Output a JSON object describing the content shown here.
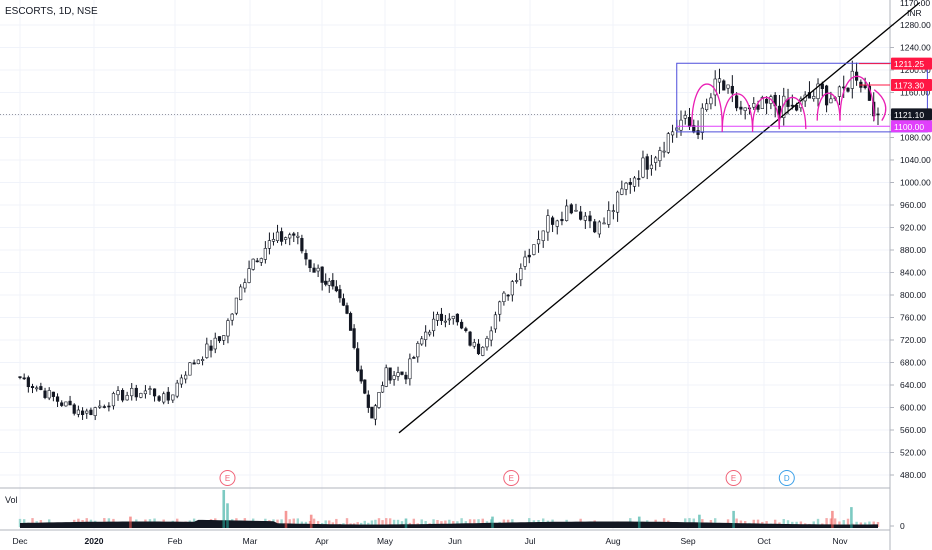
{
  "header": {
    "symbol_line": "ESCORTS, 1D, NSE",
    "volume_label": "Vol"
  },
  "chart_data": {
    "type": "candlestick",
    "symbol": "ESCORTS",
    "interval": "1D",
    "exchange": "NSE",
    "currency": "INR",
    "y_ticks": [
      480,
      520,
      560,
      600,
      640,
      680,
      720,
      760,
      800,
      840,
      880,
      920,
      960,
      1000,
      1040,
      1080,
      1120,
      1160,
      1200,
      1240,
      1280
    ],
    "y_top_label": "1170.00",
    "ylim": [
      465,
      1320
    ],
    "x_tick_labels": [
      "Dec",
      "2020",
      "Feb",
      "Mar",
      "Apr",
      "May",
      "Jun",
      "Jul",
      "Aug",
      "Sep",
      "Oct",
      "Nov"
    ],
    "price_levels": [
      {
        "value": 1211.25,
        "label": "1211.25",
        "color": "#ff1744"
      },
      {
        "value": 1173.3,
        "label": "1173.30",
        "color": "#ff1744"
      },
      {
        "value": 1121.1,
        "label": "1121.10",
        "color": "#131722"
      },
      {
        "value": 1100.0,
        "label": "1100.00",
        "color": "#e040fb"
      }
    ],
    "events": [
      {
        "label": "E",
        "month_pos": 2.7,
        "color": "#f06277"
      },
      {
        "label": "E",
        "month_pos": 6.75,
        "color": "#f06277"
      },
      {
        "label": "E",
        "month_pos": 9.6,
        "color": "#f06277"
      },
      {
        "label": "D",
        "month_pos": 10.3,
        "color": "#3a9fe8"
      }
    ],
    "trendline": {
      "start": {
        "month_pos": 5.2,
        "price": 555
      },
      "end": {
        "month_pos": 12.05,
        "price": 1320
      }
    },
    "rectangle": {
      "month_start": 8.85,
      "month_end": 12.15,
      "price_top": 1212,
      "price_bottom": 1090
    },
    "path_nodes": [
      [
        0.0,
        655
      ],
      [
        0.6,
        605
      ],
      [
        0.9,
        590
      ],
      [
        1.3,
        620
      ],
      [
        1.7,
        630
      ],
      [
        1.9,
        610
      ],
      [
        2.1,
        660
      ],
      [
        2.4,
        700
      ],
      [
        2.6,
        720
      ],
      [
        2.8,
        780
      ],
      [
        3.0,
        860
      ],
      [
        3.25,
        890
      ],
      [
        3.6,
        910
      ],
      [
        3.8,
        860
      ],
      [
        4.1,
        820
      ],
      [
        4.4,
        760
      ],
      [
        4.6,
        660
      ],
      [
        4.8,
        580
      ],
      [
        5.0,
        660
      ],
      [
        5.3,
        660
      ],
      [
        5.6,
        740
      ],
      [
        5.9,
        770
      ],
      [
        6.3,
        700
      ],
      [
        6.6,
        780
      ],
      [
        6.9,
        860
      ],
      [
        7.2,
        930
      ],
      [
        7.5,
        960
      ],
      [
        7.85,
        920
      ],
      [
        8.2,
        1000
      ],
      [
        8.6,
        1060
      ],
      [
        8.9,
        1110
      ],
      [
        9.1,
        1090
      ],
      [
        9.4,
        1180
      ],
      [
        9.6,
        1140
      ],
      [
        9.8,
        1120
      ],
      [
        10.1,
        1140
      ],
      [
        10.4,
        1130
      ],
      [
        10.7,
        1160
      ],
      [
        11.0,
        1150
      ],
      [
        11.2,
        1200
      ],
      [
        11.4,
        1150
      ],
      [
        11.5,
        1121
      ]
    ],
    "volume_spikes": [
      {
        "month_pos": 2.65,
        "height": 1.0,
        "color": "#26a69a"
      },
      {
        "month_pos": 2.7,
        "height": 0.65,
        "color": "#26a69a"
      },
      {
        "month_pos": 3.5,
        "height": 0.45,
        "color": "#ef5350"
      },
      {
        "month_pos": 3.85,
        "height": 0.35,
        "color": "#ef5350"
      },
      {
        "month_pos": 1.45,
        "height": 0.3,
        "color": "#ef5350"
      },
      {
        "month_pos": 5.3,
        "height": 0.25,
        "color": "#26a69a"
      },
      {
        "month_pos": 6.5,
        "height": 0.3,
        "color": "#26a69a"
      },
      {
        "month_pos": 8.35,
        "height": 0.3,
        "color": "#26a69a"
      },
      {
        "month_pos": 9.15,
        "height": 0.35,
        "color": "#26a69a"
      },
      {
        "month_pos": 9.6,
        "height": 0.45,
        "color": "#26a69a"
      },
      {
        "month_pos": 10.9,
        "height": 0.45,
        "color": "#ef5350"
      },
      {
        "month_pos": 11.15,
        "height": 0.55,
        "color": "#26a69a"
      }
    ],
    "volume_tick_label": "0",
    "colors": {
      "up": "#26a69a",
      "down": "#131722",
      "grid": "#f0f3fa",
      "trendline": "#000000",
      "rectangle": "#4d4ddb",
      "annotation": "#e91eb4"
    }
  }
}
